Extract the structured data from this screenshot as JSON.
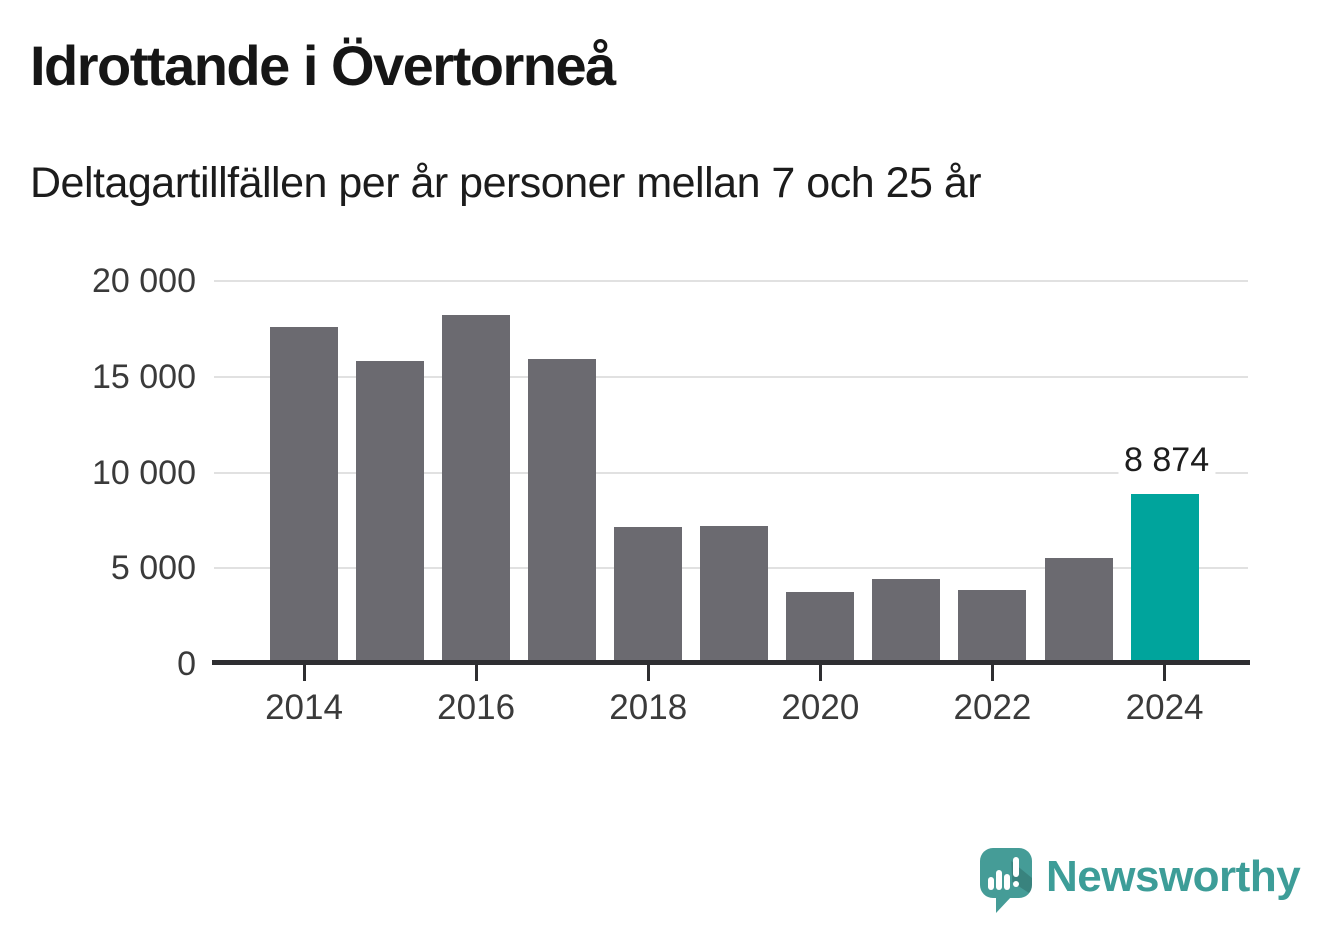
{
  "header": {
    "title": "Idrottande i Övertorneå",
    "subtitle": "Deltagartillfällen per år personer mellan 7 och 25 år"
  },
  "chart_data": {
    "type": "bar",
    "title": "Idrottande i Övertorneå",
    "subtitle": "Deltagartillfällen per år personer mellan 7 och 25 år",
    "categories": [
      "2014",
      "2015",
      "2016",
      "2017",
      "2018",
      "2019",
      "2020",
      "2021",
      "2022",
      "2023",
      "2024"
    ],
    "values": [
      17600,
      15800,
      18200,
      15950,
      7150,
      7200,
      3750,
      4450,
      3850,
      5550,
      8874
    ],
    "highlight_index": 10,
    "bar_label": {
      "index": 10,
      "text": "8 874"
    },
    "ylim": [
      0,
      20000
    ],
    "yticks": [
      {
        "value": 0,
        "label": "0"
      },
      {
        "value": 5000,
        "label": "5 000"
      },
      {
        "value": 10000,
        "label": "10 000"
      },
      {
        "value": 15000,
        "label": "15 000"
      },
      {
        "value": 20000,
        "label": "20 000"
      }
    ],
    "xtick_labels": [
      "2014",
      "2016",
      "2018",
      "2020",
      "2022",
      "2024"
    ],
    "grid": "horizontal-gridlines",
    "legend": "none",
    "colors": {
      "bar_default": "#6b6a70",
      "bar_highlight": "#00a49c",
      "gridline": "#e1e1e1",
      "axis": "#2e2e31",
      "tick_text": "#3a3a3a",
      "annotation_text": "#1d1d1d"
    }
  },
  "footer": {
    "brand": "Newsworthy",
    "brand_color": "#3d9d98",
    "logo_bubble_color": "#459c97",
    "logo_icon": "speech-bubble-bar-chart-exclamation-icon"
  }
}
